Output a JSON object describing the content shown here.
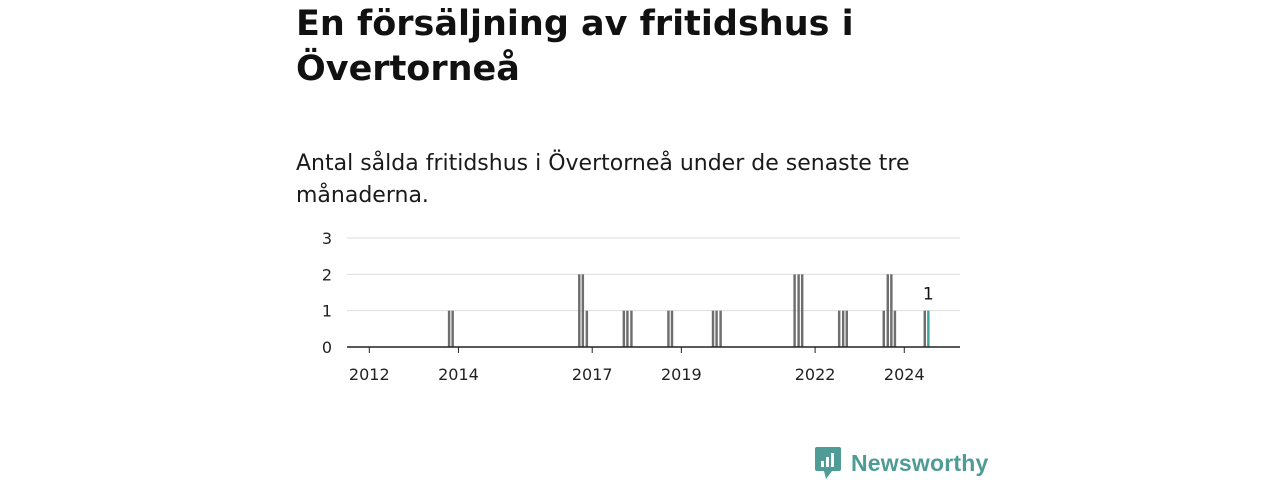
{
  "headline": "En försäljning av fritidshus i Övertorneå",
  "subtitle": "Antal sålda fritidshus i Övertorneå under de senaste tre månaderna.",
  "chart_data": {
    "type": "bar",
    "title": "Antal sålda fritidshus i Övertorneå under de senaste tre månaderna.",
    "xlabel": "",
    "ylabel": "",
    "ylim": [
      0,
      3
    ],
    "yticks": [
      "0",
      "1",
      "2",
      "3"
    ],
    "xticks": [
      "2012",
      "2014",
      "2017",
      "2019",
      "2022",
      "2024"
    ],
    "grid": true,
    "x_domain": [
      2011.5,
      2025.25
    ],
    "bar_width": 0.055,
    "colors": {
      "bar": "#6e6e6e",
      "highlight": "#3fa49b",
      "grid": "#dddddd",
      "axis": "#222222"
    },
    "highlight_label": "1",
    "bars": [
      {
        "x": 2013.79,
        "value": 1
      },
      {
        "x": 2013.87,
        "value": 1
      },
      {
        "x": 2016.71,
        "value": 2
      },
      {
        "x": 2016.79,
        "value": 2
      },
      {
        "x": 2016.88,
        "value": 1
      },
      {
        "x": 2017.71,
        "value": 1
      },
      {
        "x": 2017.79,
        "value": 1
      },
      {
        "x": 2017.88,
        "value": 1
      },
      {
        "x": 2018.71,
        "value": 1
      },
      {
        "x": 2018.79,
        "value": 1
      },
      {
        "x": 2019.71,
        "value": 1
      },
      {
        "x": 2019.79,
        "value": 1
      },
      {
        "x": 2019.88,
        "value": 1
      },
      {
        "x": 2021.54,
        "value": 2
      },
      {
        "x": 2021.63,
        "value": 2
      },
      {
        "x": 2021.71,
        "value": 2
      },
      {
        "x": 2022.54,
        "value": 1
      },
      {
        "x": 2022.63,
        "value": 1
      },
      {
        "x": 2022.71,
        "value": 1
      },
      {
        "x": 2023.54,
        "value": 1
      },
      {
        "x": 2023.63,
        "value": 2
      },
      {
        "x": 2023.71,
        "value": 2
      },
      {
        "x": 2023.79,
        "value": 1
      },
      {
        "x": 2024.46,
        "value": 1
      },
      {
        "x": 2024.54,
        "value": 1,
        "highlight": true
      }
    ]
  },
  "logo": {
    "text": "Newsworthy",
    "color": "#4e9c95",
    "icon": "bar-chart-speech-bubble-icon"
  }
}
